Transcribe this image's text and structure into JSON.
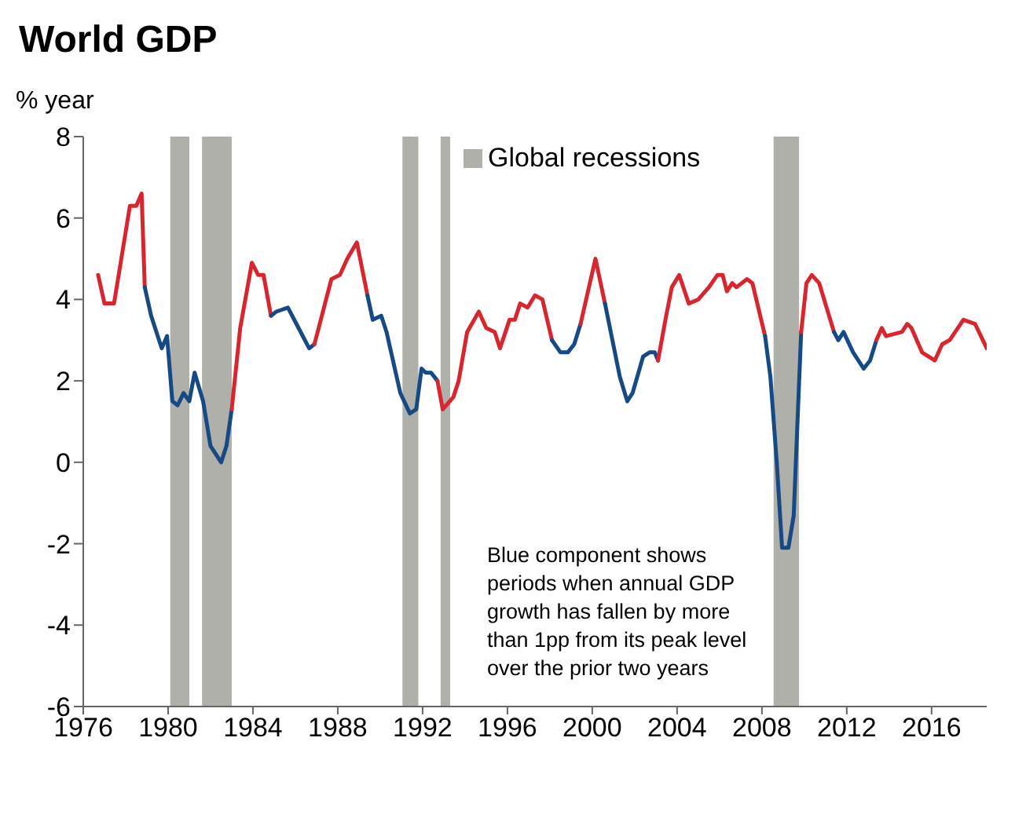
{
  "chart_data": {
    "type": "line",
    "title": "World GDP",
    "ylabel": "% year",
    "annotations": [
      "Blue component shows periods when annual GDP growth has fallen by more than 1pp from its peak level over the prior two years"
    ],
    "xlim": [
      1976,
      2018.6
    ],
    "xticks": [
      1976,
      1980,
      1984,
      1988,
      1992,
      1996,
      2000,
      2004,
      2008,
      2012,
      2016
    ],
    "ylim": [
      -6,
      8
    ],
    "yticks": [
      -6,
      -4,
      -2,
      0,
      2,
      4,
      6,
      8
    ],
    "grid": false,
    "legend": "top",
    "line_style": "solid",
    "marker": "none",
    "bands": [
      {
        "axis": "x",
        "from": 1992.85,
        "to": 1993.3,
        "label": "Global recessions",
        "color": "#b0b0ab"
      },
      {
        "axis": "x",
        "from": 1980.1,
        "to": 1981.0,
        "label": null,
        "color": "#b0b0ab"
      },
      {
        "axis": "x",
        "from": 1981.6,
        "to": 1983.0,
        "label": null,
        "color": "#b0b0ab"
      },
      {
        "axis": "x",
        "from": 1991.05,
        "to": 1991.8,
        "label": null,
        "color": "#b0b0ab"
      },
      {
        "axis": "x",
        "from": 2008.55,
        "to": 2009.75,
        "label": null,
        "color": "#b0b0ab"
      }
    ],
    "series": [
      {
        "color": "#d9262e",
        "x": [
          1976.7,
          1977.0,
          1977.45,
          1978.2,
          1978.5,
          1978.75,
          1978.9
        ],
        "values": [
          4.6,
          3.9,
          3.9,
          6.3,
          6.3,
          6.6,
          4.3
        ]
      },
      {
        "color": "#174a84",
        "x": [
          1978.9,
          1979.2,
          1979.7,
          1979.95,
          1980.2,
          1980.45,
          1980.73,
          1981.0,
          1981.25,
          1981.65,
          1982.0,
          1982.5,
          1982.75,
          1983.0
        ],
        "values": [
          4.3,
          3.6,
          2.8,
          3.1,
          1.5,
          1.4,
          1.7,
          1.5,
          2.2,
          1.5,
          0.4,
          0.0,
          0.4,
          1.3
        ]
      },
      {
        "color": "#d9262e",
        "x": [
          1983.0,
          1983.4,
          1983.95,
          1984.25,
          1984.5,
          1984.85
        ],
        "values": [
          1.3,
          3.3,
          4.9,
          4.6,
          4.6,
          3.6
        ]
      },
      {
        "color": "#174a84",
        "x": [
          1984.85,
          1985.1,
          1985.65,
          1986.15,
          1986.65,
          1986.9
        ],
        "values": [
          3.6,
          3.7,
          3.8,
          3.3,
          2.8,
          2.9
        ]
      },
      {
        "color": "#d9262e",
        "x": [
          1986.9,
          1987.25,
          1987.7,
          1988.1,
          1988.45,
          1988.9,
          1989.4
        ],
        "values": [
          2.9,
          3.6,
          4.5,
          4.6,
          5.0,
          5.4,
          4.1
        ]
      },
      {
        "color": "#174a84",
        "x": [
          1989.4,
          1989.65,
          1990.05,
          1990.3,
          1990.95,
          1991.4,
          1991.7,
          1991.95,
          1992.15,
          1992.4,
          1992.7
        ],
        "values": [
          4.1,
          3.5,
          3.6,
          3.2,
          1.7,
          1.2,
          1.3,
          2.3,
          2.2,
          2.2,
          2.0
        ]
      },
      {
        "color": "#d9262e",
        "x": [
          1992.7,
          1992.95,
          1993.45,
          1993.7,
          1994.1,
          1994.65,
          1995.0,
          1995.4,
          1995.65,
          1996.1,
          1996.35,
          1996.6,
          1996.95,
          1997.3,
          1997.65,
          1998.1
        ],
        "values": [
          2.0,
          1.3,
          1.6,
          2.0,
          3.2,
          3.7,
          3.3,
          3.2,
          2.8,
          3.5,
          3.5,
          3.9,
          3.8,
          4.1,
          4.0,
          3.0
        ]
      },
      {
        "color": "#174a84",
        "x": [
          1998.1,
          1998.5,
          1998.85,
          1999.15,
          1999.45
        ],
        "values": [
          3.0,
          2.7,
          2.7,
          2.9,
          3.4
        ]
      },
      {
        "color": "#d9262e",
        "x": [
          1999.45,
          1999.8,
          2000.15,
          2000.6
        ],
        "values": [
          3.4,
          4.2,
          5.0,
          3.9
        ]
      },
      {
        "color": "#174a84",
        "x": [
          2000.6,
          2000.95,
          2001.3,
          2001.65,
          2001.9,
          2002.4,
          2002.7,
          2002.95,
          2003.1
        ],
        "values": [
          3.9,
          3.0,
          2.1,
          1.5,
          1.7,
          2.6,
          2.7,
          2.7,
          2.5
        ]
      },
      {
        "color": "#d9262e",
        "x": [
          2003.1,
          2003.45,
          2003.75,
          2004.1,
          2004.55,
          2005.0,
          2005.5,
          2005.9,
          2006.15,
          2006.35,
          2006.6,
          2006.8,
          2007.3,
          2007.55,
          2008.15
        ],
        "values": [
          2.5,
          3.5,
          4.3,
          4.6,
          3.9,
          4.0,
          4.3,
          4.6,
          4.6,
          4.2,
          4.4,
          4.3,
          4.5,
          4.4,
          3.1
        ]
      },
      {
        "color": "#174a84",
        "x": [
          2008.15,
          2008.4,
          2008.7,
          2008.95,
          2009.25,
          2009.5,
          2009.6,
          2009.85
        ],
        "values": [
          3.1,
          2.1,
          0.0,
          -2.1,
          -2.1,
          -1.3,
          0.0,
          3.2
        ]
      },
      {
        "color": "#d9262e",
        "x": [
          2009.85,
          2010.1,
          2010.35,
          2010.7,
          2011.4
        ],
        "values": [
          3.2,
          4.4,
          4.6,
          4.4,
          3.2
        ]
      },
      {
        "color": "#174a84",
        "x": [
          2011.4,
          2011.6,
          2011.85,
          2012.3,
          2012.8,
          2013.1,
          2013.4
        ],
        "values": [
          3.2,
          3.0,
          3.2,
          2.7,
          2.3,
          2.5,
          3.0
        ]
      },
      {
        "color": "#d9262e",
        "x": [
          2013.4,
          2013.65,
          2013.85,
          2014.6,
          2014.85,
          2015.05,
          2015.55,
          2016.15,
          2016.5,
          2016.85,
          2017.5,
          2018.05,
          2018.6
        ],
        "values": [
          3.0,
          3.3,
          3.1,
          3.2,
          3.4,
          3.3,
          2.7,
          2.5,
          2.9,
          3.0,
          3.5,
          3.4,
          2.8
        ]
      }
    ]
  }
}
